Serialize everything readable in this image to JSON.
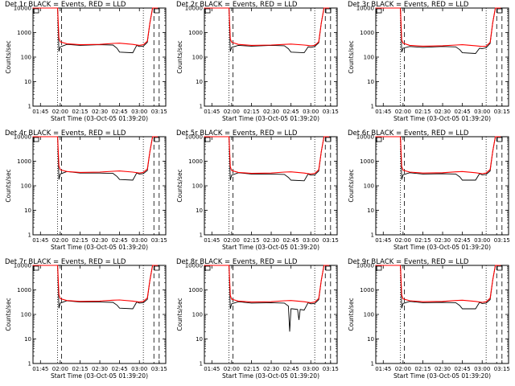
{
  "chart_data": [
    {
      "type": "line",
      "title": "Det 1r BLACK = Events, RED = LLD",
      "xlabel": "Start Time (03-Oct-05 01:39:20)",
      "ylabel": "Counts/sec",
      "x_tick_labels": [
        "01:45",
        "02:00",
        "02:15",
        "02:30",
        "02:45",
        "03:00",
        "03:15"
      ],
      "y_tick_labels": [
        "1",
        "10",
        "100",
        "1000",
        "10000"
      ],
      "xlim": [
        "01:39:20",
        "03:20"
      ],
      "ylim": [
        1,
        10000
      ],
      "y_scale": "log",
      "series": [
        {
          "color": "#000000",
          "x": [
            "01:39",
            "01:58",
            "01:59",
            "02:00",
            "02:05",
            "02:15",
            "02:30",
            "02:40",
            "02:43",
            "02:45",
            "02:55",
            "02:58",
            "03:00",
            "03:03",
            "03:06",
            "03:08",
            "03:10",
            "03:14"
          ],
          "y": [
            10000,
            10000,
            170,
            260,
            330,
            300,
            320,
            310,
            230,
            160,
            150,
            300,
            270,
            280,
            400,
            2500,
            10000,
            10000
          ]
        },
        {
          "color": "#ff0000",
          "x": [
            "01:39",
            "01:58",
            "01:59",
            "02:00",
            "02:05",
            "02:15",
            "02:30",
            "02:40",
            "02:45",
            "02:55",
            "03:00",
            "03:03",
            "03:06",
            "03:08",
            "03:10",
            "03:14"
          ],
          "y": [
            10000,
            10000,
            600,
            420,
            350,
            320,
            330,
            360,
            370,
            330,
            300,
            320,
            450,
            2500,
            10000,
            10000
          ]
        }
      ]
    },
    {
      "type": "line",
      "title": "Det 2r BLACK = Events, RED = LLD",
      "xlabel": "Start Time (03-Oct-05 01:39:20)",
      "ylabel": "Counts/sec",
      "x_tick_labels": [
        "01:45",
        "02:00",
        "02:15",
        "02:30",
        "02:45",
        "03:00",
        "03:15"
      ],
      "y_tick_labels": [
        "1",
        "10",
        "100",
        "1000",
        "10000"
      ],
      "xlim": [
        "01:39:20",
        "03:20"
      ],
      "ylim": [
        1,
        10000
      ],
      "y_scale": "log",
      "series": [
        {
          "color": "#000000",
          "x": [
            "01:39",
            "01:58",
            "01:59",
            "02:00",
            "02:05",
            "02:15",
            "02:30",
            "02:40",
            "02:43",
            "02:45",
            "02:55",
            "02:58",
            "03:00",
            "03:03",
            "03:06",
            "03:08",
            "03:10",
            "03:14"
          ],
          "y": [
            10000,
            10000,
            170,
            250,
            300,
            280,
            300,
            290,
            220,
            160,
            150,
            260,
            250,
            270,
            380,
            2500,
            10000,
            10000
          ]
        },
        {
          "color": "#ff0000",
          "x": [
            "01:39",
            "01:58",
            "01:59",
            "02:00",
            "02:05",
            "02:15",
            "02:30",
            "02:40",
            "02:45",
            "02:55",
            "03:00",
            "03:03",
            "03:06",
            "03:08",
            "03:10",
            "03:14"
          ],
          "y": [
            10000,
            10000,
            550,
            400,
            330,
            300,
            310,
            330,
            340,
            310,
            290,
            300,
            420,
            2500,
            10000,
            10000
          ]
        }
      ]
    },
    {
      "type": "line",
      "title": "Det 3r BLACK = Events, RED = LLD",
      "xlabel": "Start Time (03-Oct-05 01:39:20)",
      "ylabel": "Counts/sec",
      "x_tick_labels": [
        "01:45",
        "02:00",
        "02:15",
        "02:30",
        "02:45",
        "03:00",
        "03:15"
      ],
      "y_tick_labels": [
        "1",
        "10",
        "100",
        "1000",
        "10000"
      ],
      "xlim": [
        "01:39:20",
        "03:20"
      ],
      "ylim": [
        1,
        10000
      ],
      "y_scale": "log",
      "series": [
        {
          "color": "#000000",
          "x": [
            "01:39",
            "01:58",
            "01:59",
            "02:00",
            "02:05",
            "02:15",
            "02:30",
            "02:40",
            "02:43",
            "02:45",
            "02:55",
            "02:58",
            "03:00",
            "03:03",
            "03:06",
            "03:08",
            "03:10",
            "03:14"
          ],
          "y": [
            10000,
            10000,
            160,
            230,
            270,
            250,
            270,
            260,
            200,
            150,
            140,
            230,
            220,
            240,
            360,
            2500,
            10000,
            10000
          ]
        },
        {
          "color": "#ff0000",
          "x": [
            "01:39",
            "01:58",
            "01:59",
            "02:00",
            "02:05",
            "02:15",
            "02:30",
            "02:40",
            "02:45",
            "02:55",
            "03:00",
            "03:03",
            "03:06",
            "03:08",
            "03:10",
            "03:14"
          ],
          "y": [
            10000,
            10000,
            500,
            370,
            300,
            280,
            290,
            310,
            320,
            290,
            270,
            280,
            400,
            2500,
            10000,
            10000
          ]
        }
      ]
    },
    {
      "type": "line",
      "title": "Det 4r BLACK = Events, RED = LLD",
      "xlabel": "Start Time (03-Oct-05 01:39:20)",
      "ylabel": "Counts/sec",
      "x_tick_labels": [
        "01:45",
        "02:00",
        "02:15",
        "02:30",
        "02:45",
        "03:00",
        "03:15"
      ],
      "y_tick_labels": [
        "1",
        "10",
        "100",
        "1000",
        "10000"
      ],
      "xlim": [
        "01:39:20",
        "03:20"
      ],
      "ylim": [
        1,
        10000
      ],
      "y_scale": "log",
      "series": [
        {
          "color": "#000000",
          "x": [
            "01:39",
            "01:58",
            "01:59",
            "02:00",
            "02:05",
            "02:15",
            "02:30",
            "02:40",
            "02:43",
            "02:45",
            "02:55",
            "02:58",
            "03:00",
            "03:03",
            "03:06",
            "03:08",
            "03:10",
            "03:14"
          ],
          "y": [
            10000,
            10000,
            180,
            300,
            380,
            330,
            330,
            320,
            240,
            180,
            170,
            330,
            300,
            310,
            420,
            2500,
            10000,
            10000
          ]
        },
        {
          "color": "#ff0000",
          "x": [
            "01:39",
            "01:58",
            "01:59",
            "02:00",
            "02:05",
            "02:15",
            "02:30",
            "02:40",
            "02:45",
            "02:55",
            "03:00",
            "03:03",
            "03:06",
            "03:08",
            "03:10",
            "03:14"
          ],
          "y": [
            10000,
            10000,
            650,
            450,
            380,
            350,
            360,
            390,
            400,
            360,
            330,
            350,
            480,
            2500,
            10000,
            10000
          ]
        }
      ]
    },
    {
      "type": "line",
      "title": "Det 5r BLACK = Events, RED = LLD",
      "xlabel": "Start Time (03-Oct-05 01:39:20)",
      "ylabel": "Counts/sec",
      "x_tick_labels": [
        "01:45",
        "02:00",
        "02:15",
        "02:30",
        "02:45",
        "03:00",
        "03:15"
      ],
      "y_tick_labels": [
        "1",
        "10",
        "100",
        "1000",
        "10000"
      ],
      "xlim": [
        "01:39:20",
        "03:20"
      ],
      "ylim": [
        1,
        10000
      ],
      "y_scale": "log",
      "series": [
        {
          "color": "#000000",
          "x": [
            "01:39",
            "01:58",
            "01:59",
            "02:00",
            "02:05",
            "02:15",
            "02:30",
            "02:40",
            "02:43",
            "02:45",
            "02:55",
            "02:58",
            "03:00",
            "03:03",
            "03:06",
            "03:08",
            "03:10",
            "03:14"
          ],
          "y": [
            10000,
            10000,
            170,
            270,
            340,
            300,
            300,
            290,
            220,
            170,
            160,
            300,
            270,
            280,
            400,
            2500,
            10000,
            10000
          ]
        },
        {
          "color": "#ff0000",
          "x": [
            "01:39",
            "01:58",
            "01:59",
            "02:00",
            "02:05",
            "02:15",
            "02:30",
            "02:40",
            "02:45",
            "02:55",
            "03:00",
            "03:03",
            "03:06",
            "03:08",
            "03:10",
            "03:14"
          ],
          "y": [
            10000,
            10000,
            600,
            420,
            350,
            320,
            330,
            360,
            370,
            330,
            300,
            320,
            450,
            2500,
            10000,
            10000
          ]
        }
      ]
    },
    {
      "type": "line",
      "title": "Det 6r BLACK = Events, RED = LLD",
      "xlabel": "Start Time (03-Oct-05 01:39:20)",
      "ylabel": "Counts/sec",
      "x_tick_labels": [
        "01:45",
        "02:00",
        "02:15",
        "02:30",
        "02:45",
        "03:00",
        "03:15"
      ],
      "y_tick_labels": [
        "1",
        "10",
        "100",
        "1000",
        "10000"
      ],
      "xlim": [
        "01:39:20",
        "03:20"
      ],
      "ylim": [
        1,
        10000
      ],
      "y_scale": "log",
      "series": [
        {
          "color": "#000000",
          "x": [
            "01:39",
            "01:58",
            "01:59",
            "02:00",
            "02:05",
            "02:15",
            "02:30",
            "02:40",
            "02:43",
            "02:45",
            "02:55",
            "02:58",
            "03:00",
            "03:03",
            "03:06",
            "03:08",
            "03:10",
            "03:14"
          ],
          "y": [
            10000,
            10000,
            180,
            280,
            340,
            300,
            310,
            300,
            230,
            170,
            170,
            310,
            280,
            290,
            400,
            2500,
            10000,
            10000
          ]
        },
        {
          "color": "#ff0000",
          "x": [
            "01:39",
            "01:58",
            "01:59",
            "02:00",
            "02:05",
            "02:15",
            "02:30",
            "02:40",
            "02:45",
            "02:55",
            "03:00",
            "03:03",
            "03:06",
            "03:08",
            "03:10",
            "03:14"
          ],
          "y": [
            10000,
            10000,
            620,
            430,
            360,
            330,
            340,
            370,
            380,
            340,
            310,
            330,
            460,
            2500,
            10000,
            10000
          ]
        }
      ]
    },
    {
      "type": "line",
      "title": "Det 7r BLACK = Events, RED = LLD",
      "xlabel": "Start Time (03-Oct-05 01:39:20)",
      "ylabel": "Counts/sec",
      "x_tick_labels": [
        "01:45",
        "02:00",
        "02:15",
        "02:30",
        "02:45",
        "03:00",
        "03:15"
      ],
      "y_tick_labels": [
        "1",
        "10",
        "100",
        "1000",
        "10000"
      ],
      "xlim": [
        "01:39:20",
        "03:20"
      ],
      "ylim": [
        1,
        10000
      ],
      "y_scale": "log",
      "series": [
        {
          "color": "#000000",
          "x": [
            "01:39",
            "01:58",
            "01:59",
            "02:00",
            "02:05",
            "02:15",
            "02:30",
            "02:40",
            "02:43",
            "02:45",
            "02:55",
            "02:58",
            "03:00",
            "03:03",
            "03:06",
            "03:08",
            "03:10",
            "03:14"
          ],
          "y": [
            10000,
            10000,
            180,
            290,
            360,
            320,
            320,
            310,
            240,
            180,
            170,
            320,
            290,
            300,
            410,
            2500,
            10000,
            10000
          ]
        },
        {
          "color": "#ff0000",
          "x": [
            "01:39",
            "01:58",
            "01:59",
            "02:00",
            "02:05",
            "02:15",
            "02:30",
            "02:40",
            "02:45",
            "02:55",
            "03:00",
            "03:03",
            "03:06",
            "03:08",
            "03:10",
            "03:14"
          ],
          "y": [
            10000,
            10000,
            640,
            440,
            370,
            340,
            350,
            380,
            390,
            350,
            320,
            340,
            470,
            2500,
            10000,
            10000
          ]
        }
      ]
    },
    {
      "type": "line",
      "title": "Det 8r BLACK = Events, RED = LLD",
      "xlabel": "Start Time (03-Oct-05 01:39:20)",
      "ylabel": "Counts/sec",
      "x_tick_labels": [
        "01:45",
        "02:00",
        "02:15",
        "02:30",
        "02:45",
        "03:00",
        "03:15"
      ],
      "y_tick_labels": [
        "1",
        "10",
        "100",
        "1000",
        "10000"
      ],
      "xlim": [
        "01:39:20",
        "03:20"
      ],
      "ylim": [
        1,
        10000
      ],
      "y_scale": "log",
      "series": [
        {
          "color": "#000000",
          "x": [
            "01:39",
            "01:58",
            "01:59",
            "02:00",
            "02:05",
            "02:15",
            "02:30",
            "02:40",
            "02:43",
            "02:44",
            "02:45",
            "02:46",
            "02:50",
            "02:51",
            "02:52",
            "02:55",
            "02:58",
            "03:00",
            "03:03",
            "03:06",
            "03:08",
            "03:10",
            "03:14"
          ],
          "y": [
            10000,
            10000,
            170,
            270,
            330,
            290,
            300,
            290,
            220,
            20,
            170,
            170,
            160,
            60,
            160,
            150,
            300,
            270,
            280,
            400,
            2500,
            10000,
            10000
          ]
        },
        {
          "color": "#ff0000",
          "x": [
            "01:39",
            "01:58",
            "01:59",
            "02:00",
            "02:05",
            "02:15",
            "02:30",
            "02:40",
            "02:45",
            "02:55",
            "03:00",
            "03:03",
            "03:06",
            "03:08",
            "03:10",
            "03:14"
          ],
          "y": [
            10000,
            10000,
            600,
            420,
            350,
            320,
            330,
            360,
            370,
            330,
            300,
            320,
            450,
            2500,
            10000,
            10000
          ]
        }
      ]
    },
    {
      "type": "line",
      "title": "Det 9r BLACK = Events, RED = LLD",
      "xlabel": "Start Time (03-Oct-05 01:39:20)",
      "ylabel": "Counts/sec",
      "x_tick_labels": [
        "01:45",
        "02:00",
        "02:15",
        "02:30",
        "02:45",
        "03:00",
        "03:15"
      ],
      "y_tick_labels": [
        "1",
        "10",
        "100",
        "1000",
        "10000"
      ],
      "xlim": [
        "01:39:20",
        "03:20"
      ],
      "ylim": [
        1,
        10000
      ],
      "y_scale": "log",
      "series": [
        {
          "color": "#000000",
          "x": [
            "01:39",
            "01:58",
            "01:59",
            "02:00",
            "02:05",
            "02:15",
            "02:30",
            "02:40",
            "02:43",
            "02:45",
            "02:55",
            "02:58",
            "03:00",
            "03:03",
            "03:06",
            "03:08",
            "03:10",
            "03:14"
          ],
          "y": [
            10000,
            10000,
            180,
            280,
            340,
            300,
            310,
            300,
            230,
            170,
            170,
            310,
            280,
            290,
            400,
            2500,
            10000,
            10000
          ]
        },
        {
          "color": "#ff0000",
          "x": [
            "01:39",
            "01:58",
            "01:59",
            "02:00",
            "02:05",
            "02:15",
            "02:30",
            "02:40",
            "02:45",
            "02:55",
            "03:00",
            "03:03",
            "03:06",
            "03:08",
            "03:10",
            "03:14"
          ],
          "y": [
            10000,
            10000,
            620,
            430,
            360,
            330,
            340,
            370,
            380,
            340,
            310,
            330,
            460,
            2500,
            10000,
            10000
          ]
        }
      ]
    }
  ],
  "markers": {
    "dotted_times": [
      "01:58",
      "03:03"
    ],
    "dashed_times": [
      "02:01",
      "03:11",
      "03:15"
    ]
  }
}
